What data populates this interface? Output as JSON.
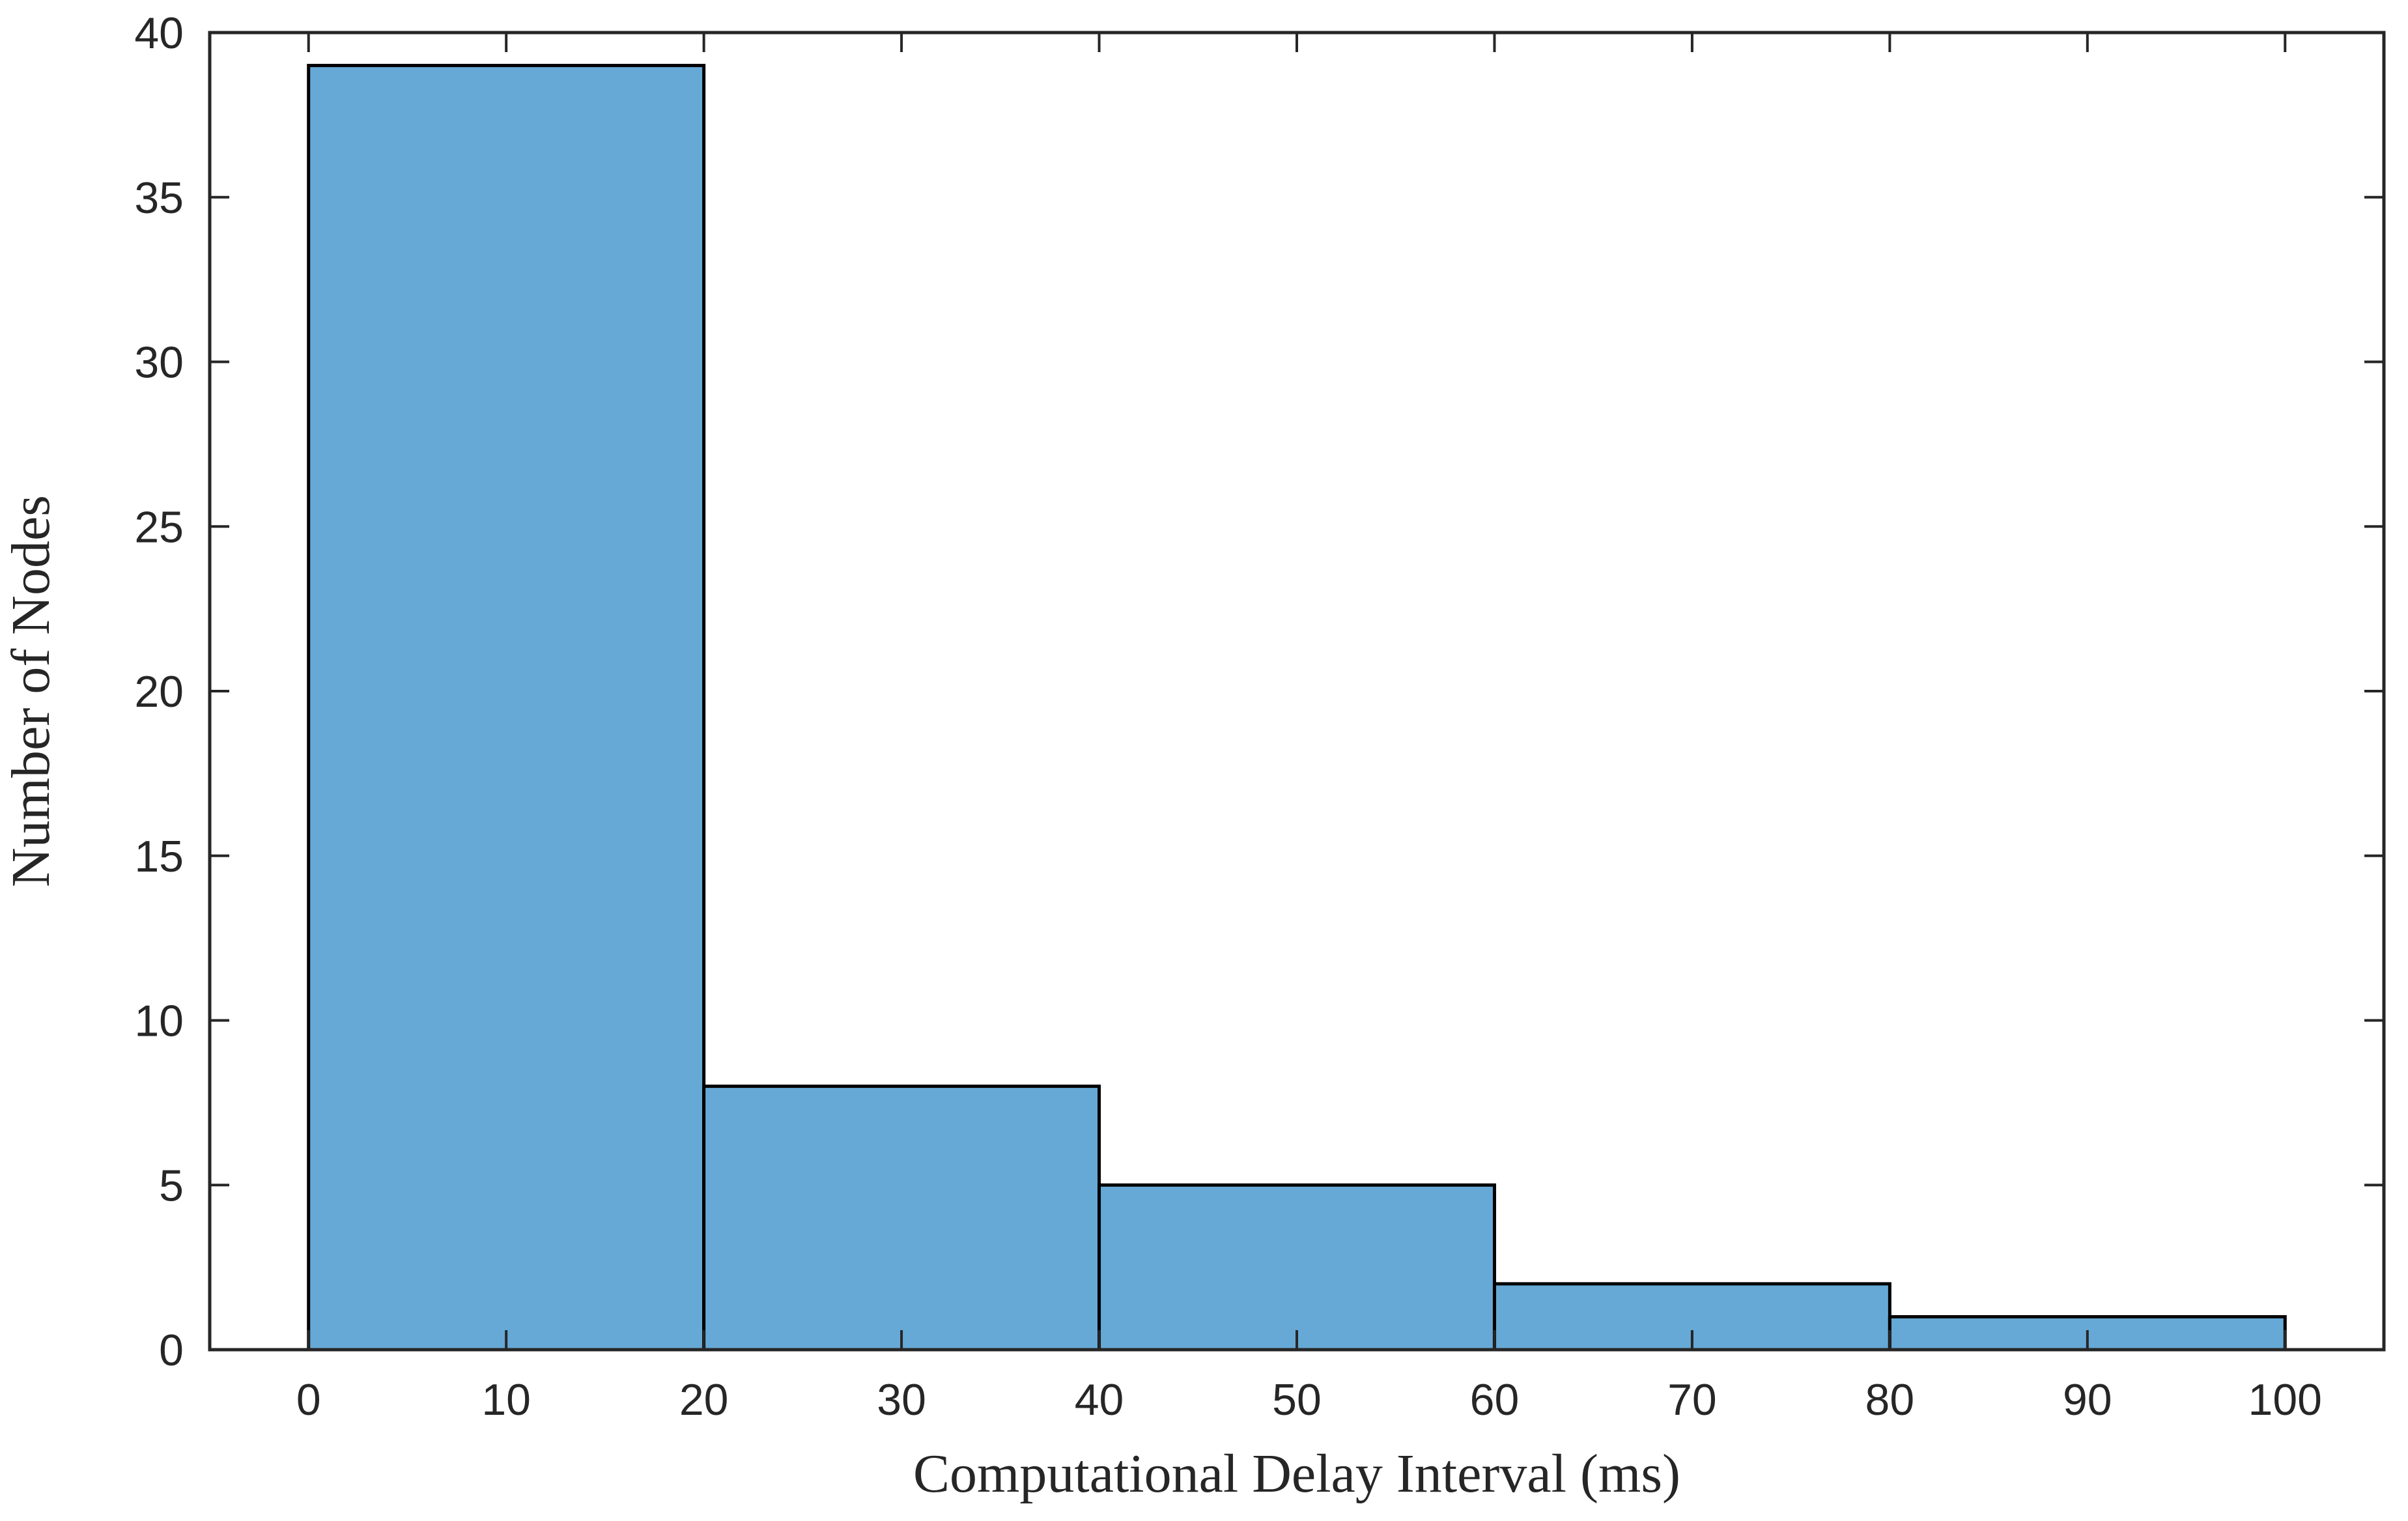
{
  "chart_data": {
    "type": "bar",
    "title": "",
    "xlabel": "Computational Delay Interval (ms)",
    "ylabel": "Number of Nodes",
    "bins": [
      {
        "start": 0,
        "end": 20,
        "count": 39
      },
      {
        "start": 20,
        "end": 40,
        "count": 8
      },
      {
        "start": 40,
        "end": 60,
        "count": 5
      },
      {
        "start": 60,
        "end": 80,
        "count": 2
      },
      {
        "start": 80,
        "end": 100,
        "count": 1
      }
    ],
    "xlim": [
      -5,
      105
    ],
    "ylim": [
      0,
      40
    ],
    "xticks": [
      0,
      10,
      20,
      30,
      40,
      50,
      60,
      70,
      80,
      90,
      100
    ],
    "yticks": [
      0,
      5,
      10,
      15,
      20,
      25,
      30,
      35,
      40
    ],
    "grid": false,
    "legend": "none",
    "bar_color": "#66A9D6",
    "edge_color": "#000000"
  }
}
